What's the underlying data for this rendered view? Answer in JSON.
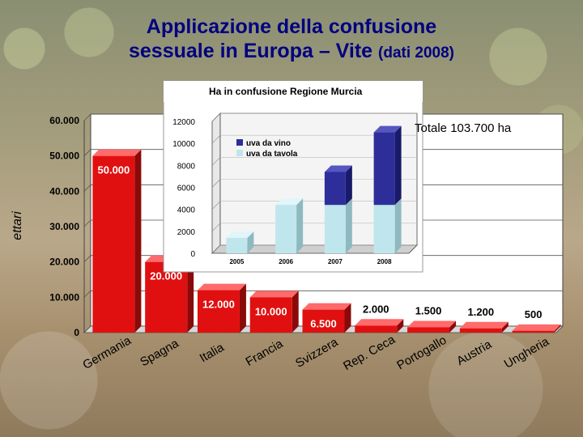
{
  "title": {
    "line1": "Applicazione della confusione",
    "line2_main": "sessuale in Europa – Vite",
    "line2_small": "(dati 2008)"
  },
  "chart_data": [
    {
      "type": "bar",
      "title": "",
      "xlabel": "",
      "ylabel": "ettari",
      "ylim": [
        0,
        60000
      ],
      "y_ticks": [
        "0",
        "10.000",
        "20.000",
        "30.000",
        "40.000",
        "50.000",
        "60.000"
      ],
      "annotation": "Totale 103.700 ha",
      "categories": [
        "Germania",
        "Spagna",
        "Italia",
        "Francia",
        "Svizzera",
        "Rep. Ceca",
        "Portogallo",
        "Austria",
        "Ungheria"
      ],
      "values": [
        50000,
        20000,
        12000,
        10000,
        6500,
        2000,
        1500,
        1200,
        500
      ],
      "data_labels": [
        "50.000",
        "20.000",
        "12.000",
        "10.000",
        "6.500",
        "2.000",
        "1.500",
        "1.200",
        "500"
      ],
      "color": "#e11010",
      "grid": true
    },
    {
      "type": "bar",
      "stacked": true,
      "title": "Ha in confusione Regione Murcia",
      "categories": [
        "2005",
        "2006",
        "2007",
        "2008"
      ],
      "ylim": [
        0,
        12000
      ],
      "y_ticks": [
        "0",
        "2000",
        "4000",
        "6000",
        "8000",
        "10000",
        "12000"
      ],
      "series": [
        {
          "name": "uva da tavola",
          "values": [
            1400,
            4400,
            4400,
            4400
          ],
          "color": "#bfe6ec"
        },
        {
          "name": "uva da vino",
          "values": [
            0,
            0,
            3000,
            6600
          ],
          "color": "#2e2e9a"
        }
      ],
      "legend": "top-left"
    }
  ]
}
